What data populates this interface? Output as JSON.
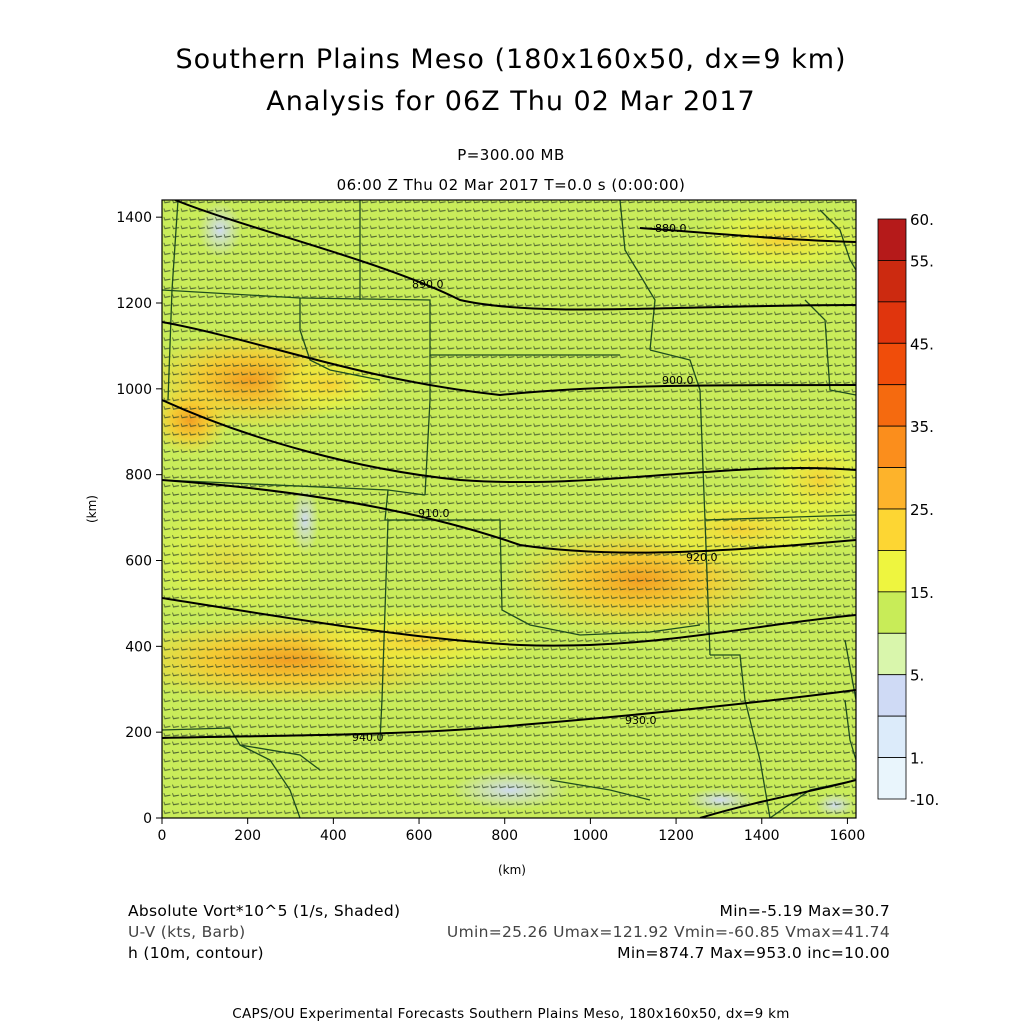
{
  "header": {
    "title_line1": "Southern Plains Meso (180x160x50, dx=9 km)",
    "title_line2": "Analysis for 06Z Thu 02 Mar 2017",
    "level": "P=300.00 MB",
    "time_line": "06:00 Z Thu 02 Mar 2017    T=0.0 s (0:00:00)"
  },
  "chart_data": {
    "type": "heatmap",
    "xlabel": "(km)",
    "ylabel": "(km)",
    "xlim": [
      0,
      1620
    ],
    "ylim": [
      0,
      1440
    ],
    "x_ticks": [
      "0",
      "200",
      "400",
      "600",
      "800",
      "1000",
      "1200",
      "1400",
      "1600"
    ],
    "y_ticks": [
      "0",
      "200",
      "400",
      "600",
      "800",
      "1000",
      "1200",
      "1400"
    ],
    "colorbar": {
      "labels": [
        "60.",
        "55.",
        "45.",
        "35.",
        "25.",
        "15.",
        "5.",
        "1.",
        "-10."
      ],
      "colors": [
        "#b51a1a",
        "#cc2a10",
        "#e0350d",
        "#f04d0a",
        "#f56a0f",
        "#fb8e1c",
        "#fdb32b",
        "#fdd633",
        "#eef53f",
        "#c8ec58",
        "#d9f6ac",
        "#cfdaf5",
        "#dcebfa",
        "#e9f5fc"
      ]
    },
    "contour_labels": [
      "880.0",
      "890.0",
      "900.0",
      "910.0",
      "920.0",
      "930.0",
      "940.0"
    ],
    "grid": false
  },
  "legend": {
    "field1": "Absolute Vort*10^5 (1/s, Shaded)",
    "field1_stats": "Min=-5.19  Max=30.7",
    "field2": "U-V (kts, Barb)",
    "field2_stats": "Umin=25.26  Umax=121.92  Vmin=-60.85  Vmax=41.74",
    "field3": "h (10m, contour)",
    "field3_stats": "Min=874.7  Max=953.0  inc=10.00"
  },
  "footer": "CAPS/OU Experimental Forecasts   Southern Plains Meso, 180x160x50, dx=9 km"
}
